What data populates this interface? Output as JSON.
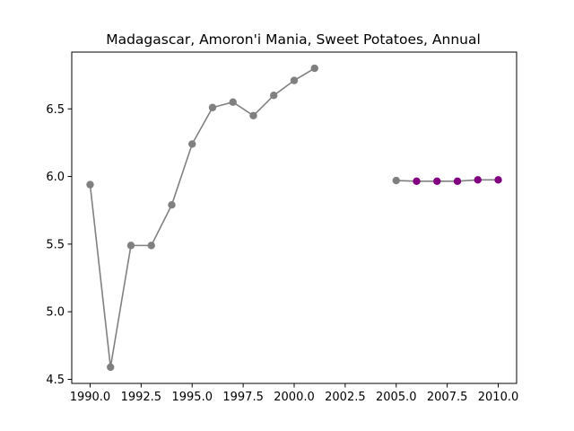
{
  "chart_data": {
    "type": "line",
    "title": "Madagascar, Amoron'i Mania, Sweet Potatoes, Annual",
    "xlabel": "",
    "ylabel": "",
    "xlim": [
      1989.1,
      2010.9
    ],
    "ylim": [
      4.47,
      6.92
    ],
    "x_ticks": [
      1990.0,
      1992.5,
      1995.0,
      1997.5,
      2000.0,
      2002.5,
      2005.0,
      2007.5,
      2010.0
    ],
    "x_tick_labels": [
      "1990.0",
      "1992.5",
      "1995.0",
      "1997.5",
      "2000.0",
      "2002.5",
      "2005.0",
      "2007.5",
      "2010.0"
    ],
    "y_ticks": [
      4.5,
      5.0,
      5.5,
      6.0,
      6.5
    ],
    "y_tick_labels": [
      "4.5",
      "5.0",
      "5.5",
      "6.0",
      "6.5"
    ],
    "grid": false,
    "series": [
      {
        "line_color": "#808080",
        "points": [
          {
            "x": 1990,
            "y": 5.94,
            "color": "#808080"
          },
          {
            "x": 1991,
            "y": 4.59,
            "color": "#808080"
          },
          {
            "x": 1992,
            "y": 5.49,
            "color": "#808080"
          },
          {
            "x": 1993,
            "y": 5.49,
            "color": "#808080"
          },
          {
            "x": 1994,
            "y": 5.79,
            "color": "#808080"
          },
          {
            "x": 1995,
            "y": 6.24,
            "color": "#808080"
          },
          {
            "x": 1996,
            "y": 6.51,
            "color": "#808080"
          },
          {
            "x": 1997,
            "y": 6.55,
            "color": "#808080"
          },
          {
            "x": 1998,
            "y": 6.45,
            "color": "#808080"
          },
          {
            "x": 1999,
            "y": 6.6,
            "color": "#808080"
          },
          {
            "x": 2000,
            "y": 6.71,
            "color": "#808080"
          },
          {
            "x": 2001,
            "y": 6.8,
            "color": "#808080"
          }
        ]
      },
      {
        "line_color": "#808080",
        "points": [
          {
            "x": 2005,
            "y": 5.97,
            "color": "#808080"
          },
          {
            "x": 2006,
            "y": 5.965,
            "color": "#800080"
          },
          {
            "x": 2007,
            "y": 5.965,
            "color": "#800080"
          },
          {
            "x": 2008,
            "y": 5.965,
            "color": "#800080"
          },
          {
            "x": 2009,
            "y": 5.975,
            "color": "#800080"
          },
          {
            "x": 2010,
            "y": 5.975,
            "color": "#800080"
          }
        ]
      }
    ]
  }
}
